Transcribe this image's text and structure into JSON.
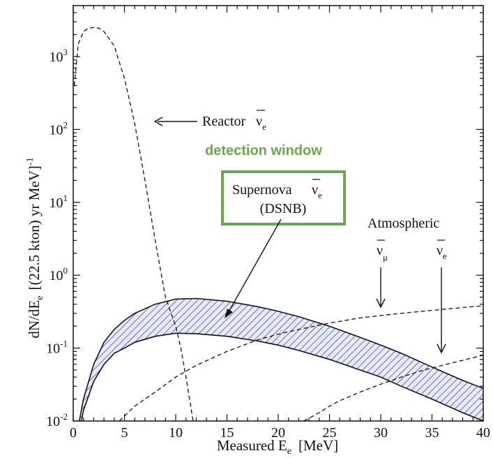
{
  "chart_data": {
    "type": "line",
    "xlabel_main": "Measured E",
    "xlabel_sub": "e",
    "xlabel_unit": "[MeV]",
    "ylabel_main": "dN/dE",
    "ylabel_sub": "e",
    "ylabel_unit": "[(22.5 kton) yr MeV]",
    "ylabel_exp": "-1",
    "xlim": [
      0,
      40
    ],
    "ylim": [
      0.01,
      5000
    ],
    "yscale": "log",
    "x_ticks": [
      0,
      5,
      10,
      15,
      20,
      25,
      30,
      35,
      40
    ],
    "x_tick_labels": [
      "0",
      "5",
      "10",
      "15",
      "20",
      "25",
      "30",
      "35",
      "40"
    ],
    "y_ticks": [
      0.01,
      0.1,
      1,
      10,
      100,
      1000
    ],
    "y_tick_labels": [
      {
        "base": "10",
        "exp": "-2"
      },
      {
        "base": "10",
        "exp": "-1"
      },
      {
        "base": "10",
        "exp": "0"
      },
      {
        "base": "10",
        "exp": "1"
      },
      {
        "base": "10",
        "exp": "2"
      },
      {
        "base": "10",
        "exp": "3"
      }
    ],
    "series": [
      {
        "name": "Reactor ν̄e",
        "style": "dashed",
        "x": [
          0.1,
          0.5,
          1,
          1.5,
          2,
          2.5,
          3,
          4,
          5,
          6,
          7,
          8,
          9,
          10,
          10.5,
          11,
          11.5,
          12
        ],
        "y": [
          400,
          1500,
          2200,
          2450,
          2500,
          2450,
          2200,
          1400,
          500,
          120,
          20,
          3,
          0.5,
          0.2,
          0.1,
          0.04,
          0.015,
          0.005
        ]
      },
      {
        "name": "DSNB upper",
        "style": "solid",
        "x": [
          0.6,
          1,
          2,
          3,
          4,
          5,
          6,
          8,
          10,
          12,
          15,
          18,
          20,
          22,
          25,
          28,
          30,
          32,
          35,
          38,
          40
        ],
        "y": [
          0.01,
          0.02,
          0.06,
          0.12,
          0.18,
          0.24,
          0.3,
          0.4,
          0.47,
          0.48,
          0.44,
          0.37,
          0.32,
          0.27,
          0.2,
          0.14,
          0.11,
          0.085,
          0.055,
          0.036,
          0.028
        ]
      },
      {
        "name": "DSNB lower",
        "style": "solid",
        "x": [
          0.8,
          1,
          2,
          3,
          4,
          5,
          6,
          8,
          10,
          12,
          15,
          18,
          20,
          22,
          25,
          28,
          30,
          32,
          35,
          38,
          40
        ],
        "y": [
          0.01,
          0.014,
          0.035,
          0.06,
          0.085,
          0.1,
          0.12,
          0.145,
          0.16,
          0.158,
          0.145,
          0.125,
          0.11,
          0.093,
          0.07,
          0.05,
          0.04,
          0.03,
          0.02,
          0.013,
          0.01
        ]
      },
      {
        "name": "Atmospheric ν̄μ",
        "style": "dashed",
        "x": [
          4.5,
          6,
          8,
          10,
          12,
          15,
          18,
          20,
          22,
          25,
          28,
          30,
          32,
          35,
          38,
          40
        ],
        "y": [
          0.01,
          0.016,
          0.025,
          0.04,
          0.058,
          0.09,
          0.13,
          0.155,
          0.18,
          0.22,
          0.26,
          0.28,
          0.3,
          0.33,
          0.36,
          0.38
        ]
      },
      {
        "name": "Atmospheric ν̄e",
        "style": "dashed",
        "x": [
          22.5,
          24,
          25,
          26,
          28,
          30,
          32,
          34,
          36,
          38,
          40
        ],
        "y": [
          0.01,
          0.013,
          0.016,
          0.019,
          0.025,
          0.032,
          0.04,
          0.049,
          0.058,
          0.068,
          0.08
        ]
      }
    ],
    "annotations": {
      "reactor_label": "Reactor",
      "supernova_label": "Supernova",
      "dsnb_label": "(DSNB)",
      "detection_window": "detection window",
      "atmospheric_label": "Atmospheric",
      "nu_symbol": "ν",
      "nu_sub_e": "e",
      "nu_sub_mu": "μ"
    },
    "colors": {
      "band_hatch": "#2e3a9e",
      "detection_box": "#6aa84f",
      "detection_text": "#6aa84f",
      "lines": "#111111"
    }
  }
}
